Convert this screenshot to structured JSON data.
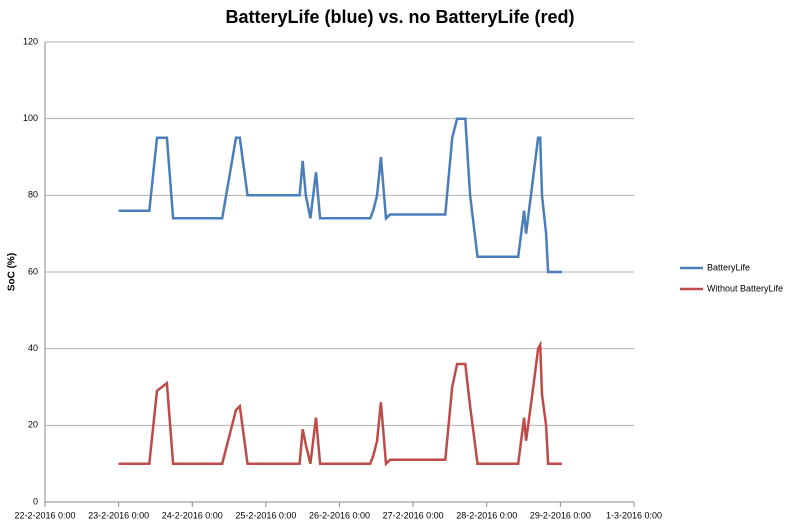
{
  "chart_data": {
    "type": "line",
    "title": "BatteryLife (blue) vs. no BatteryLife (red)",
    "y_label": "SoC (%)",
    "x": [
      "23-2-2016 0:00",
      "23-2-2016 10:00",
      "23-2-2016 12:30",
      "23-2-2016 15:45",
      "23-2-2016 17:45",
      "24-2-2016 9:45",
      "24-2-2016 14:15",
      "24-2-2016 15:30",
      "24-2-2016 18:00",
      "25-2-2016 11:00",
      "25-2-2016 12:00",
      "25-2-2016 13:00",
      "25-2-2016 14:30",
      "25-2-2016 16:20",
      "25-2-2016 17:40",
      "26-2-2016 10:00",
      "26-2-2016 11:00",
      "26-2-2016 12:15",
      "26-2-2016 13:30",
      "26-2-2016 15:10",
      "26-2-2016 16:30",
      "27-2-2016 10:30",
      "27-2-2016 12:45",
      "27-2-2016 14:20",
      "27-2-2016 17:00",
      "27-2-2016 18:35",
      "27-2-2016 21:00",
      "28-2-2016 10:15",
      "28-2-2016 12:10",
      "28-2-2016 12:50",
      "28-2-2016 15:10",
      "28-2-2016 16:45",
      "28-2-2016 17:25",
      "28-2-2016 18:00",
      "28-2-2016 19:20",
      "28-2-2016 20:00",
      "29-2-2016 0:30"
    ],
    "series": [
      {
        "name": "BatteryLife",
        "color": "#4a7ebb",
        "values": [
          76,
          76,
          95,
          95,
          74,
          74,
          95,
          95,
          80,
          80,
          89,
          80,
          74,
          86,
          74,
          74,
          76,
          80,
          90,
          74,
          75,
          75,
          95,
          100,
          100,
          80,
          64,
          64,
          76,
          70,
          85,
          95,
          95,
          80,
          70,
          60,
          60
        ]
      },
      {
        "name": "Without BatteryLife",
        "color": "#be4b48",
        "values": [
          10,
          10,
          29,
          31,
          10,
          10,
          24,
          25,
          10,
          10,
          19,
          15,
          10,
          22,
          10,
          10,
          12,
          16,
          26,
          10,
          11,
          11,
          30,
          36,
          36,
          25,
          10,
          10,
          22,
          16,
          30,
          40,
          41,
          28,
          20,
          10,
          10
        ]
      }
    ],
    "xlim": [
      "22-2-2016 0:00",
      "1-3-2016 0:00"
    ],
    "xticks": [
      "22-2-2016 0:00",
      "23-2-2016 0:00",
      "24-2-2016 0:00",
      "25-2-2016 0:00",
      "26-2-2016 0:00",
      "27-2-2016 0:00",
      "28-2-2016 0:00",
      "29-2-2016 0:00",
      "1-3-2016 0:00"
    ],
    "ylim": [
      0,
      120
    ],
    "yticks": [
      0,
      20,
      40,
      60,
      80,
      100,
      120
    ],
    "grid": true,
    "legend": "right"
  }
}
